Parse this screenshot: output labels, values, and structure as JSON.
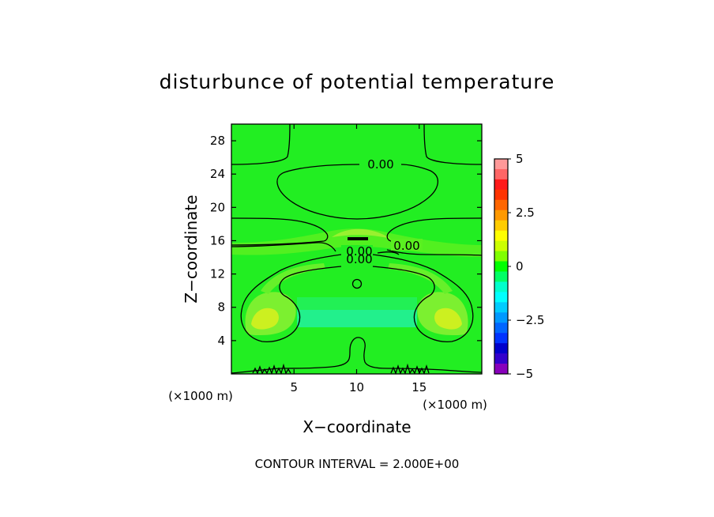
{
  "chart_data": {
    "type": "heatmap",
    "title": "disturbunce of potential temperature",
    "xlabel": "X−coordinate",
    "ylabel": "Z−coordinate",
    "x_unit": "(×1000 m)",
    "y_unit": "(×1000 m)",
    "footer": "CONTOUR INTERVAL = 2.000E+00",
    "xlim": [
      0,
      20
    ],
    "ylim": [
      0,
      30
    ],
    "x_ticks": [
      5,
      10,
      15
    ],
    "y_ticks": [
      4,
      8,
      12,
      16,
      20,
      24,
      28
    ],
    "contour_labels": [
      {
        "text": "0.00",
        "x": 12.2,
        "y": 24.8
      },
      {
        "text": "0.00",
        "x": 13.8,
        "y": 15.7
      },
      {
        "text": "0.00",
        "x": 10.0,
        "y": 14.6
      },
      {
        "text": "0.00",
        "x": 10.0,
        "y": 13.6
      }
    ],
    "colorbar": {
      "range": [
        -5,
        5
      ],
      "tick_labels": [
        "5",
        "2.5",
        "0",
        "−2.5",
        "−5"
      ],
      "tick_values": [
        5,
        2.5,
        0,
        -2.5,
        -5
      ],
      "colors": [
        "#ff9999",
        "#ff6666",
        "#ff1a1a",
        "#ff3300",
        "#ff6600",
        "#ff9900",
        "#ffcc00",
        "#ffff00",
        "#ccff00",
        "#80ff00",
        "#00ff00",
        "#00ff66",
        "#00ffcc",
        "#00ffff",
        "#00ccff",
        "#0099ff",
        "#0066ff",
        "#0033ff",
        "#0000cc",
        "#3300cc",
        "#8800bb"
      ]
    },
    "field": {
      "background": "#22ee22",
      "features": [
        {
          "kind": "warm-band",
          "name": "tropopause",
          "color": "#55f022",
          "x": [
            0,
            20
          ],
          "y": [
            14.5,
            17.0
          ]
        },
        {
          "kind": "warm-blob",
          "name": "left-plume",
          "color": "#88f033",
          "center": [
            2.3,
            6.0
          ]
        },
        {
          "kind": "warm-blob",
          "name": "right-plume",
          "color": "#88f033",
          "center": [
            17.7,
            6.0
          ]
        },
        {
          "kind": "cool-band",
          "name": "mid-level-cool",
          "color": "#22f08a",
          "x": [
            5,
            15
          ],
          "y": [
            5.8,
            8.0
          ]
        }
      ]
    }
  }
}
